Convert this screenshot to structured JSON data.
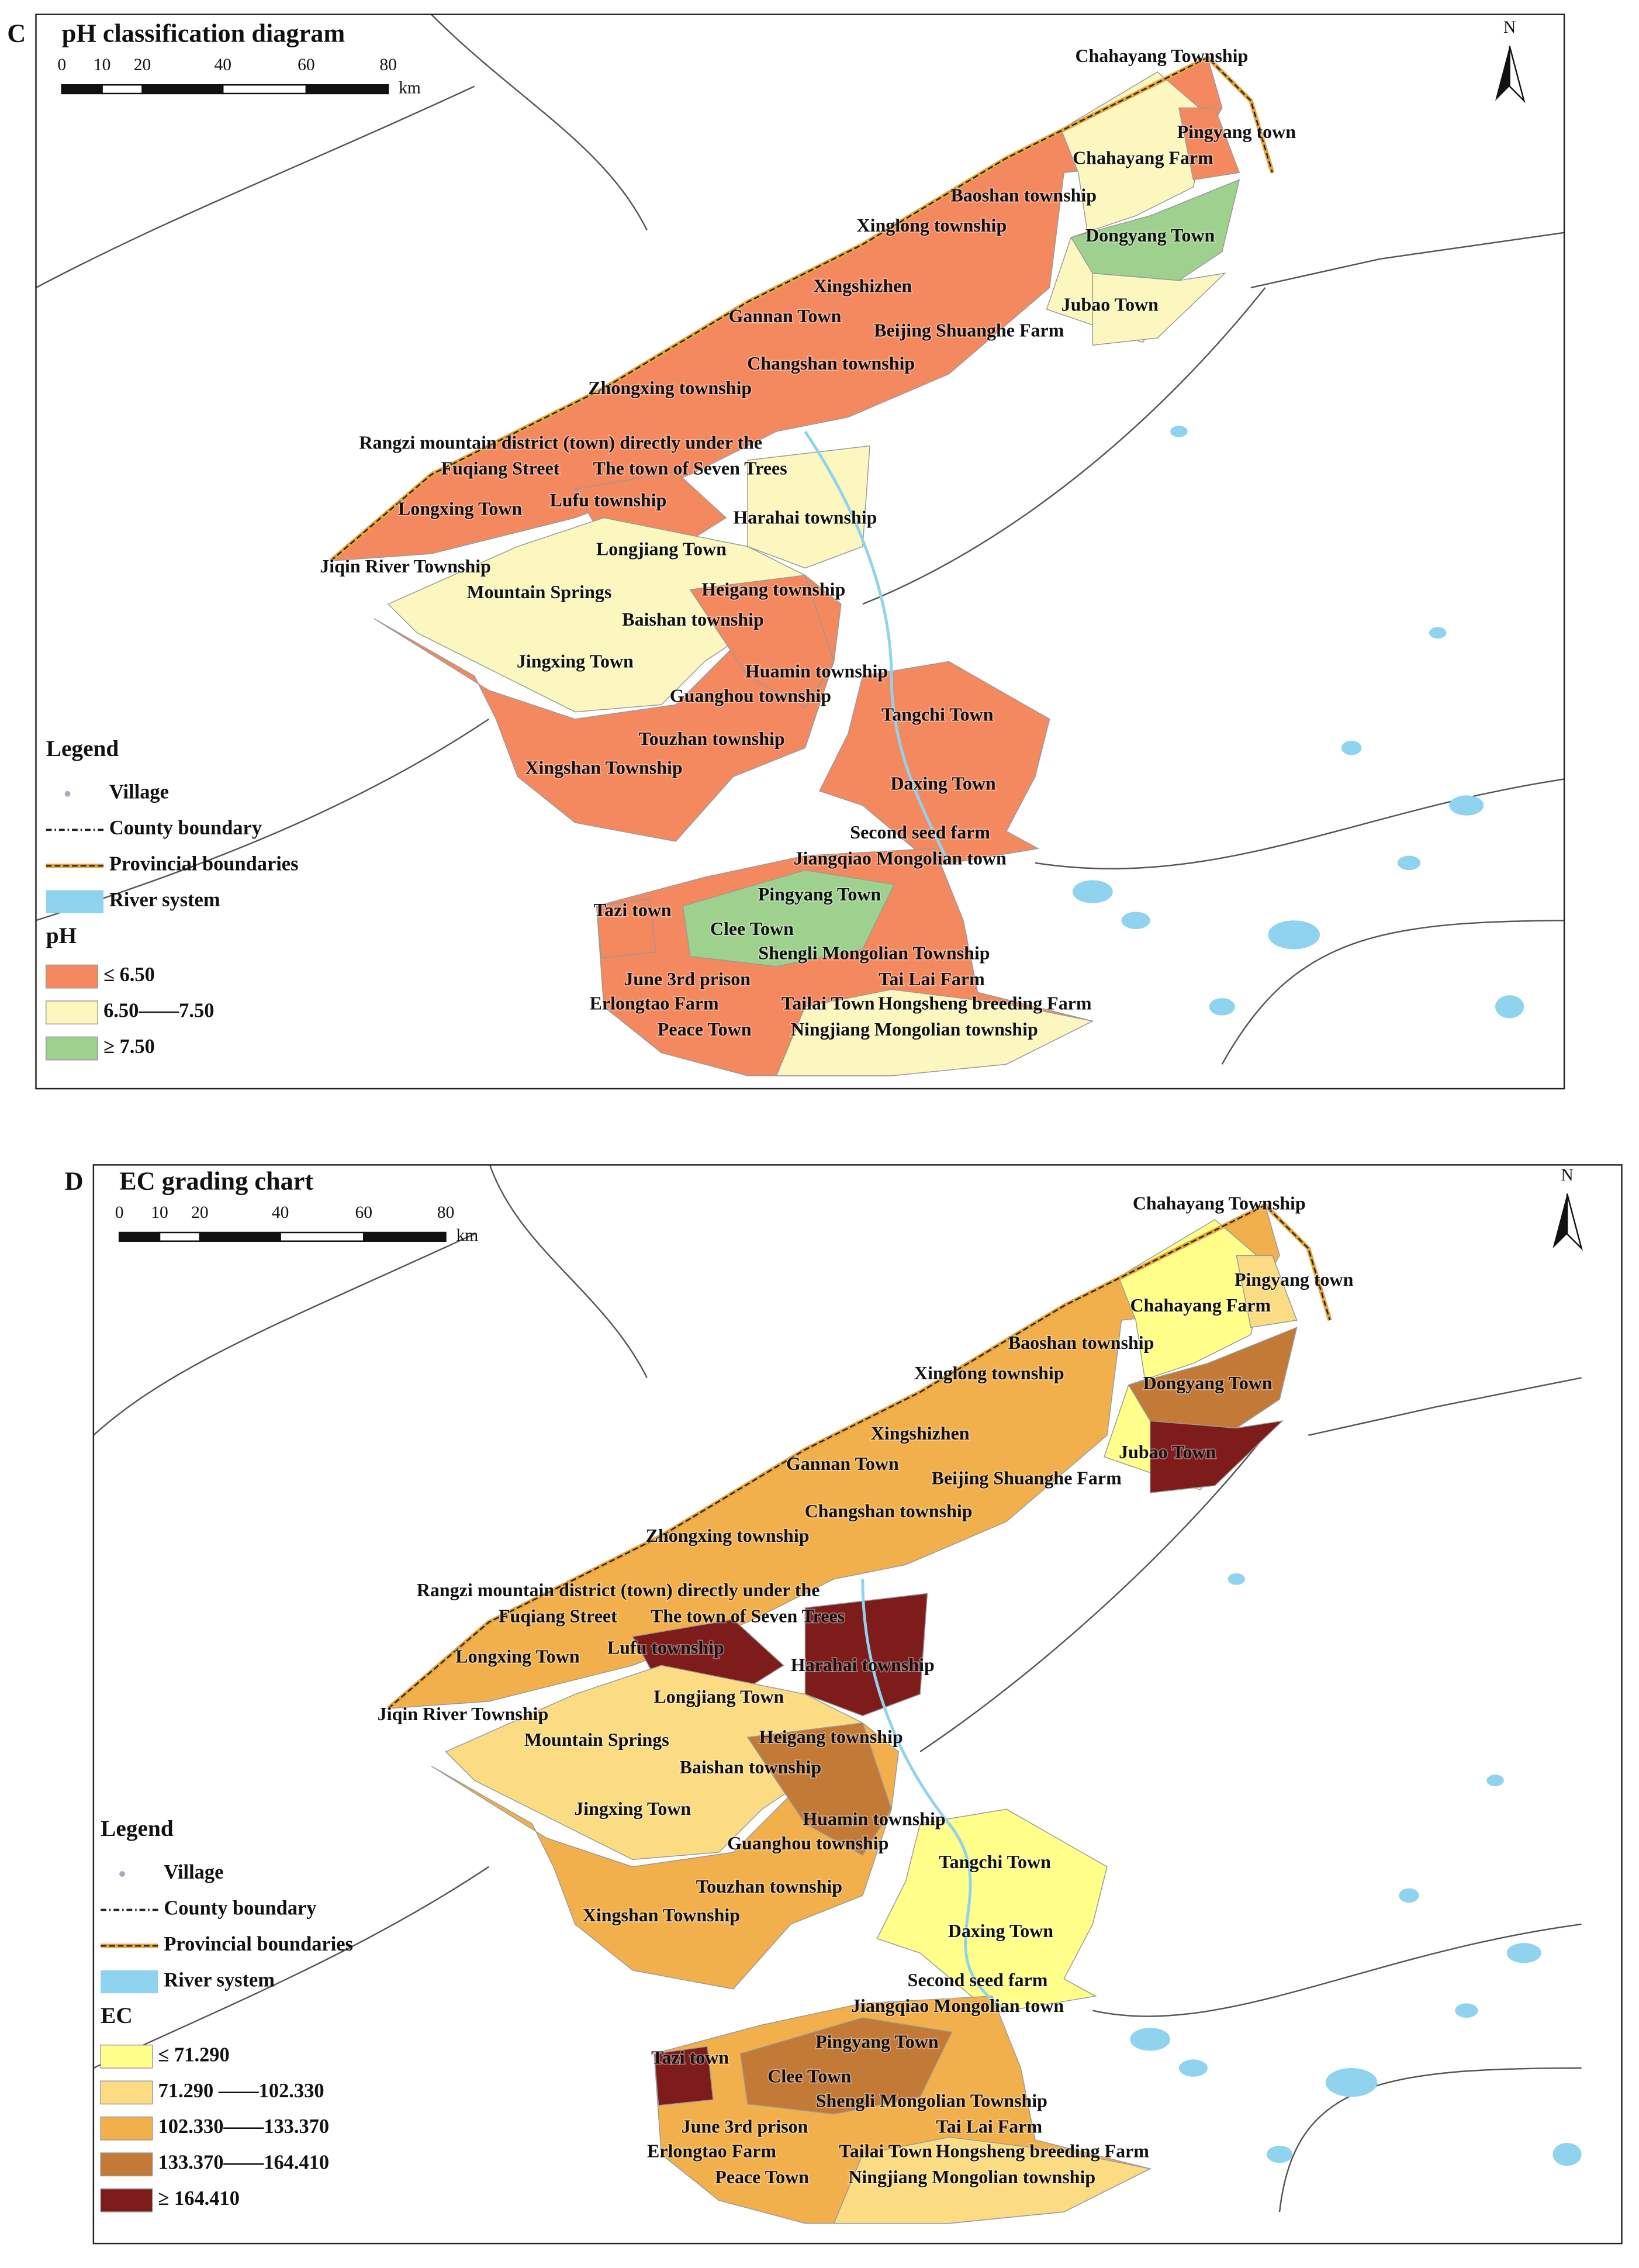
{
  "panels": [
    {
      "letter": "C",
      "title": "pH classification diagram",
      "scale": {
        "ticks": [
          0,
          10,
          20,
          40,
          60,
          80
        ],
        "unit": "km"
      },
      "north": "N",
      "places": [
        "Chahayang Township",
        "Pingyang town",
        "Chahayang Farm",
        "Baoshan township",
        "Xinglong township",
        "Dongyang Town",
        "Xingshizhen",
        "Jubao Town",
        "Gannan Town",
        "Beijing Shuanghe Farm",
        "Changshan township",
        "Zhongxing township",
        "Rangzi mountain district (town) directly under the",
        "Fuqiang Street",
        "The town of Seven Trees",
        "Lufu township",
        "Longxing Town",
        "Harahai township",
        "Longjiang Town",
        "Jiqin River Township",
        "Mountain Springs",
        "Heigang township",
        "Baishan township",
        "Jingxing Town",
        "Huamin township",
        "Guanghou township",
        "Tangchi Town",
        "Touzhan township",
        "Xingshan Township",
        "Daxing Town",
        "Second seed farm",
        "Jiangqiao Mongolian town",
        "Tazi town",
        "Pingyang Town",
        "Clee Town",
        "Shengli Mongolian Township",
        "June 3rd prison",
        "Tai Lai Farm",
        "Erlongtao Farm",
        "Tailai Town",
        "Hongsheng breeding Farm",
        "Peace Town",
        "Ningjiang Mongolian township"
      ],
      "legend": {
        "title": "Legend",
        "items": [
          "Village",
          "County boundary",
          "Provincial boundaries",
          "River system"
        ],
        "class_title": "pH",
        "classes": [
          {
            "label": "≤ 6.50",
            "color": "#f4895f"
          },
          {
            "label": "6.50——7.50",
            "color": "#fbf7be"
          },
          {
            "label": "≥ 7.50",
            "color": "#9ed18d"
          }
        ]
      }
    },
    {
      "letter": "D",
      "title": "EC grading chart",
      "scale": {
        "ticks": [
          0,
          10,
          20,
          40,
          60,
          80
        ],
        "unit": "km"
      },
      "north": "N",
      "places": [
        "Chahayang Township",
        "Pingyang town",
        "Chahayang Farm",
        "Baoshan township",
        "Xinglong township",
        "Dongyang Town",
        "Xingshizhen",
        "Jubao Town",
        "Gannan Town",
        "Beijing Shuanghe Farm",
        "Changshan township",
        "Zhongxing township",
        "Rangzi mountain district (town) directly under the",
        "Fuqiang Street",
        "The town of Seven Trees",
        "Lufu township",
        "Longxing Town",
        "Harahai township",
        "Longjiang Town",
        "Jiqin River Township",
        "Mountain Springs",
        "Heigang township",
        "Baishan township",
        "Jingxing Town",
        "Huamin township",
        "Guanghou township",
        "Tangchi Town",
        "Touzhan township",
        "Xingshan Township",
        "Daxing Town",
        "Second seed farm",
        "Jiangqiao Mongolian town",
        "Tazi town",
        "Pingyang Town",
        "Clee Town",
        "Shengli Mongolian Township",
        "June 3rd prison",
        "Tai Lai Farm",
        "Erlongtao Farm",
        "Tailai Town",
        "Hongsheng breeding Farm",
        "Peace Town",
        "Ningjiang Mongolian township"
      ],
      "legend": {
        "title": "Legend",
        "items": [
          "Village",
          "County boundary",
          "Provincial boundaries",
          "River system"
        ],
        "class_title": "EC",
        "classes": [
          {
            "label": "≤ 71.290",
            "color": "#ffff8a"
          },
          {
            "label": "71.290 ——102.330",
            "color": "#fcdc82"
          },
          {
            "label": "102.330——133.370",
            "color": "#f2b04c"
          },
          {
            "label": "133.370——164.410",
            "color": "#c47a37"
          },
          {
            "label": "≥ 164.410",
            "color": "#7e1c1c"
          }
        ]
      }
    }
  ]
}
